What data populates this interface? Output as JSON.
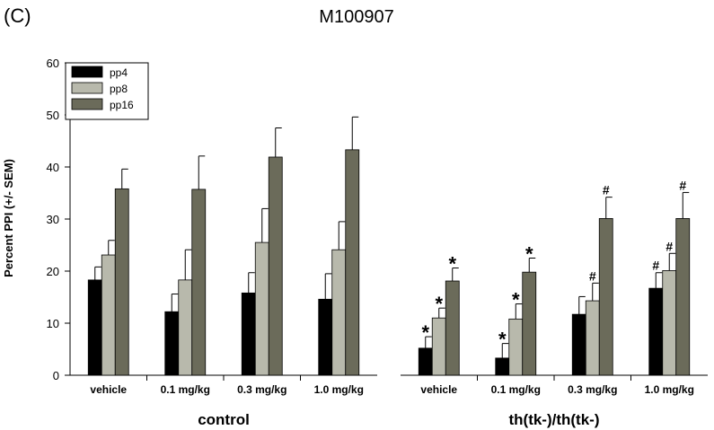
{
  "panel_label": "(C)",
  "chart_data": {
    "type": "bar",
    "title": "M100907",
    "ylabel": "Percent PPI (+/- SEM)",
    "xlabel": "",
    "ylim": [
      0,
      60
    ],
    "yticks": [
      0,
      10,
      20,
      30,
      40,
      50,
      60
    ],
    "legend_position": "top-left",
    "groups": [
      {
        "label": "control",
        "categories": [
          "vehicle",
          "0.1 mg/kg",
          "0.3 mg/kg",
          "1.0 mg/kg"
        ]
      },
      {
        "label": "th(tk-)/th(tk-)",
        "categories": [
          "vehicle",
          "0.1 mg/kg",
          "0.3 mg/kg",
          "1.0 mg/kg"
        ]
      }
    ],
    "series": [
      {
        "name": "pp4",
        "color": "#000000",
        "values": [
          18.3,
          12.2,
          15.8,
          14.6,
          5.2,
          3.3,
          11.7,
          16.7
        ],
        "errors": [
          2.5,
          3.4,
          3.9,
          4.9,
          2.2,
          2.8,
          3.4,
          3.0
        ],
        "annotations": [
          "",
          "",
          "",
          "",
          "*",
          "*",
          "",
          "#"
        ]
      },
      {
        "name": "pp8",
        "color": "#b8b9ac",
        "values": [
          23.1,
          18.3,
          25.5,
          24.1,
          11.0,
          10.8,
          14.3,
          20.1
        ],
        "errors": [
          2.8,
          5.8,
          6.5,
          5.4,
          1.9,
          2.9,
          3.4,
          3.3
        ],
        "annotations": [
          "",
          "",
          "",
          "",
          "*",
          "*",
          "#",
          "#"
        ]
      },
      {
        "name": "pp16",
        "color": "#6b6b5a",
        "values": [
          35.8,
          35.7,
          41.9,
          43.3,
          18.1,
          19.8,
          30.1,
          30.1
        ],
        "errors": [
          3.8,
          6.4,
          5.6,
          6.3,
          2.5,
          2.7,
          4.1,
          5.0
        ],
        "annotations": [
          "",
          "",
          "",
          "",
          "*",
          "*",
          "#",
          "#"
        ]
      }
    ]
  }
}
